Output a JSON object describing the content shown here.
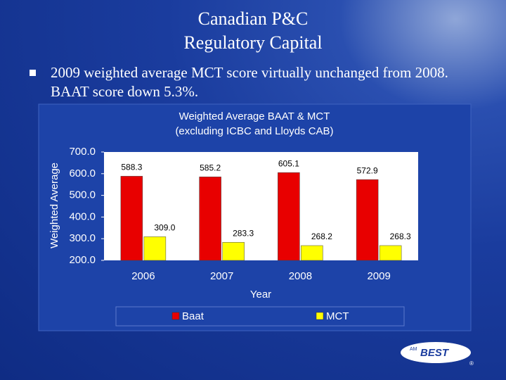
{
  "slide": {
    "title": [
      "Canadian P&C",
      "Regulatory Capital"
    ],
    "bullet": "2009 weighted average MCT score virtually unchanged from 2008. BAAT score down 5.3%.",
    "logo": {
      "mark": "AM",
      "name": "BEST",
      "registered": "®"
    }
  },
  "chart_data": {
    "type": "bar",
    "title": "Weighted Average BAAT & MCT",
    "subtitle": "(excluding ICBC and Lloyds CAB)",
    "x_label": "Year",
    "y_label": "Weighted Average",
    "categories": [
      "2006",
      "2007",
      "2008",
      "2009"
    ],
    "series": [
      {
        "name": "Baat",
        "color": "#e80000",
        "values": [
          588.3,
          585.2,
          605.1,
          572.9
        ]
      },
      {
        "name": "MCT",
        "color": "#ffff00",
        "values": [
          309.0,
          283.3,
          268.2,
          268.3
        ],
        "value_labels": [
          "309.0",
          "283.3",
          "268.2",
          "268.3"
        ]
      }
    ],
    "ylim": [
      200,
      700
    ],
    "yticks": [
      {
        "value": 200,
        "label": "200.0"
      },
      {
        "value": 300,
        "label": "300.0"
      },
      {
        "value": 400,
        "label": "400.0"
      },
      {
        "value": 500,
        "label": "500.0"
      },
      {
        "value": 600,
        "label": "600.0"
      },
      {
        "value": 700,
        "label": "700.0"
      }
    ],
    "legend": "bottom",
    "grid": false
  }
}
